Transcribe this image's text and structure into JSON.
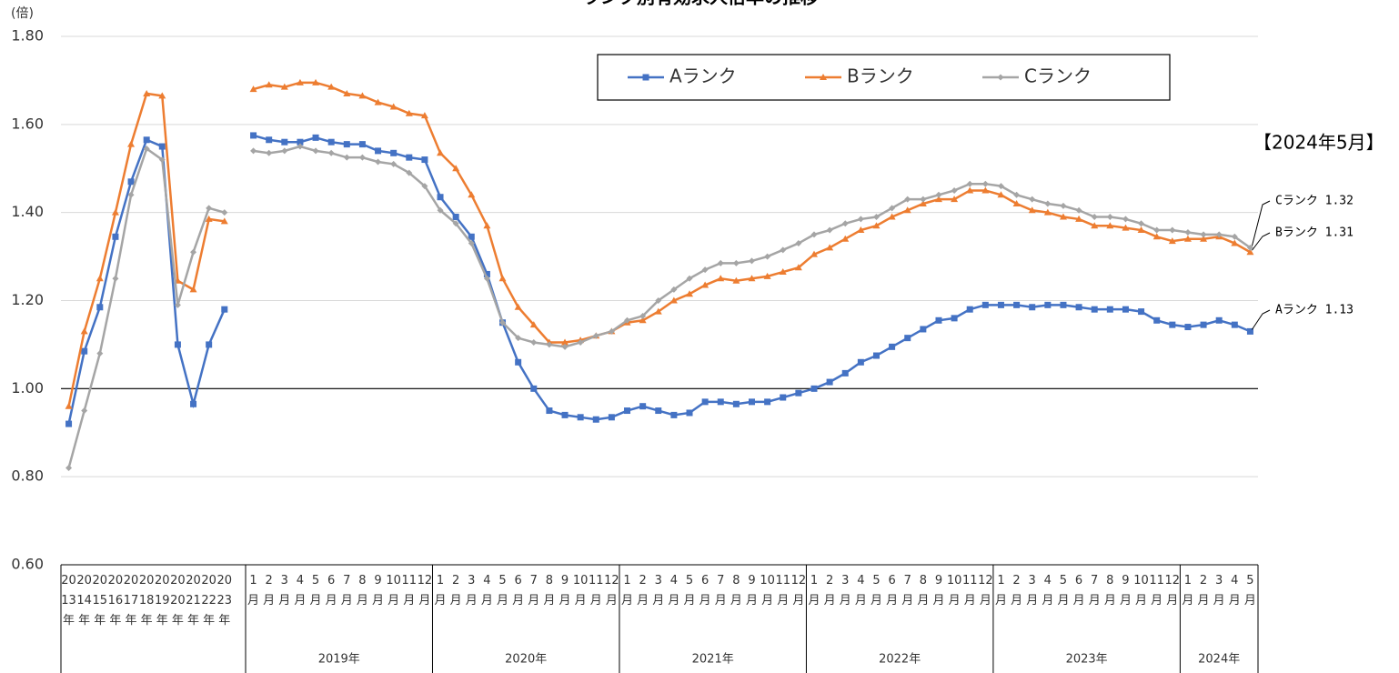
{
  "chart_data": {
    "type": "line",
    "title": "ランク別有効求人倍率の推移",
    "y_unit": "(倍)",
    "category_groups": [
      {
        "categories": [
          "2013年",
          "2014年",
          "2015年",
          "2016年",
          "2017年",
          "2018年",
          "2019年",
          "2020年",
          "2021年",
          "2022年",
          "2023年"
        ]
      },
      {
        "label": "2019年",
        "categories": [
          "1月",
          "2月",
          "3月",
          "4月",
          "5月",
          "6月",
          "7月",
          "8月",
          "9月",
          "10月",
          "11月",
          "12月"
        ]
      },
      {
        "label": "2020年",
        "categories": [
          "1月",
          "2月",
          "3月",
          "4月",
          "5月",
          "6月",
          "7月",
          "8月",
          "9月",
          "10月",
          "11月",
          "12月"
        ]
      },
      {
        "label": "2021年",
        "categories": [
          "1月",
          "2月",
          "3月",
          "4月",
          "5月",
          "6月",
          "7月",
          "8月",
          "9月",
          "10月",
          "11月",
          "12月"
        ]
      },
      {
        "label": "2022年",
        "categories": [
          "1月",
          "2月",
          "3月",
          "4月",
          "5月",
          "6月",
          "7月",
          "8月",
          "9月",
          "10月",
          "11月",
          "12月"
        ]
      },
      {
        "label": "2023年",
        "categories": [
          "1月",
          "2月",
          "3月",
          "4月",
          "5月",
          "6月",
          "7月",
          "8月",
          "9月",
          "10月",
          "11月",
          "12月"
        ]
      },
      {
        "label": "2024年",
        "categories": [
          "1月",
          "2月",
          "3月",
          "4月",
          "5月"
        ]
      }
    ],
    "series": [
      {
        "name": "Aランク",
        "color": "#4472c4",
        "marker": "square",
        "values": [
          0.92,
          1.085,
          1.185,
          1.345,
          1.47,
          1.565,
          1.55,
          1.1,
          0.965,
          1.1,
          1.18,
          1.575,
          1.565,
          1.56,
          1.56,
          1.57,
          1.56,
          1.555,
          1.555,
          1.54,
          1.535,
          1.525,
          1.52,
          1.435,
          1.39,
          1.345,
          1.26,
          1.15,
          1.06,
          1.0,
          0.95,
          0.94,
          0.935,
          0.93,
          0.935,
          0.95,
          0.96,
          0.95,
          0.94,
          0.945,
          0.97,
          0.97,
          0.965,
          0.97,
          0.97,
          0.98,
          0.99,
          1.0,
          1.015,
          1.035,
          1.06,
          1.075,
          1.095,
          1.115,
          1.135,
          1.155,
          1.16,
          1.18,
          1.19,
          1.19,
          1.19,
          1.185,
          1.19,
          1.19,
          1.185,
          1.18,
          1.18,
          1.18,
          1.175,
          1.155,
          1.145,
          1.14,
          1.145,
          1.155,
          1.145,
          1.13
        ]
      },
      {
        "name": "Bランク",
        "color": "#ed7d31",
        "marker": "triangle",
        "values": [
          0.96,
          1.13,
          1.25,
          1.4,
          1.555,
          1.67,
          1.665,
          1.245,
          1.225,
          1.385,
          1.38,
          1.68,
          1.69,
          1.685,
          1.695,
          1.695,
          1.685,
          1.67,
          1.665,
          1.65,
          1.64,
          1.625,
          1.62,
          1.535,
          1.5,
          1.44,
          1.37,
          1.25,
          1.185,
          1.145,
          1.105,
          1.105,
          1.11,
          1.12,
          1.13,
          1.15,
          1.155,
          1.175,
          1.2,
          1.215,
          1.235,
          1.25,
          1.245,
          1.25,
          1.255,
          1.265,
          1.275,
          1.305,
          1.32,
          1.34,
          1.36,
          1.37,
          1.39,
          1.405,
          1.42,
          1.43,
          1.43,
          1.45,
          1.45,
          1.44,
          1.42,
          1.405,
          1.4,
          1.39,
          1.385,
          1.37,
          1.37,
          1.365,
          1.36,
          1.345,
          1.335,
          1.34,
          1.34,
          1.345,
          1.33,
          1.31
        ]
      },
      {
        "name": "Cランク",
        "color": "#a5a5a5",
        "marker": "diamond",
        "values": [
          0.82,
          0.95,
          1.08,
          1.25,
          1.44,
          1.545,
          1.52,
          1.19,
          1.31,
          1.41,
          1.4,
          1.54,
          1.535,
          1.54,
          1.55,
          1.54,
          1.535,
          1.525,
          1.525,
          1.515,
          1.51,
          1.49,
          1.46,
          1.405,
          1.375,
          1.33,
          1.25,
          1.15,
          1.115,
          1.105,
          1.1,
          1.095,
          1.105,
          1.12,
          1.13,
          1.155,
          1.165,
          1.2,
          1.225,
          1.25,
          1.27,
          1.285,
          1.285,
          1.29,
          1.3,
          1.315,
          1.33,
          1.35,
          1.36,
          1.375,
          1.385,
          1.39,
          1.41,
          1.43,
          1.43,
          1.44,
          1.45,
          1.465,
          1.465,
          1.46,
          1.44,
          1.43,
          1.42,
          1.415,
          1.405,
          1.39,
          1.39,
          1.385,
          1.375,
          1.36,
          1.36,
          1.355,
          1.35,
          1.35,
          1.345,
          1.32
        ]
      }
    ],
    "ylim": [
      0.6,
      1.8
    ],
    "yticks": [
      {
        "value": 0.6,
        "label": "0.60"
      },
      {
        "value": 0.8,
        "label": "0.80"
      },
      {
        "value": 1,
        "label": "1.00"
      },
      {
        "value": 1.2,
        "label": "1.20"
      },
      {
        "value": 1.4,
        "label": "1.40"
      },
      {
        "value": 1.6,
        "label": "1.60"
      },
      {
        "value": 1.8,
        "label": "1.80"
      }
    ],
    "reference_line": 1,
    "grid": true,
    "legend": "top",
    "annotations": [
      "【2024年5月】",
      "Cランク 1.32",
      "Bランク 1.31",
      "Aランク 1.13"
    ]
  }
}
